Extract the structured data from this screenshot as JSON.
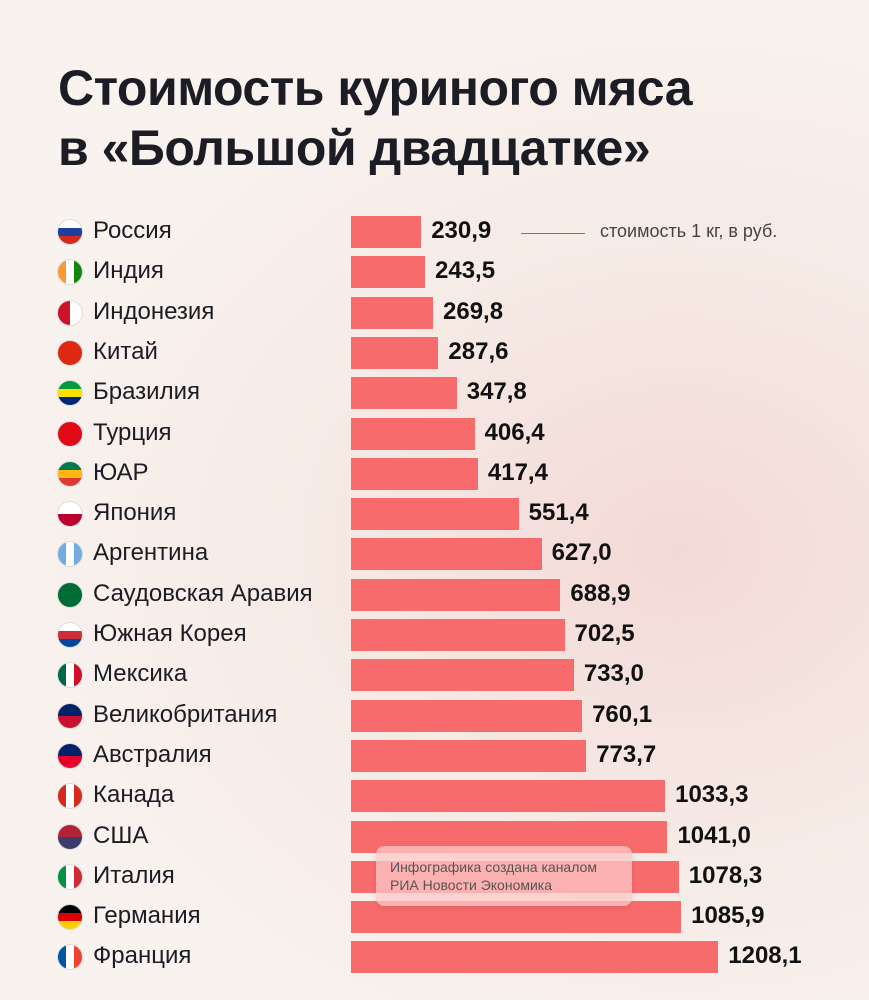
{
  "chart_data": {
    "type": "bar",
    "orientation": "horizontal",
    "title": "Стоимость куриного мяса в «Большой двадцатке»",
    "title_lines": [
      "Стоимость куриного мяса",
      "в «Большой двадцатке»"
    ],
    "annotation": "стоимость 1 кг, в руб.",
    "categories": [
      "Россия",
      "Индия",
      "Индонезия",
      "Китай",
      "Бразилия",
      "Турция",
      "ЮАР",
      "Япония",
      "Аргентина",
      "Саудовская Аравия",
      "Южная Корея",
      "Мексика",
      "Великобритания",
      "Австралия",
      "Канада",
      "США",
      "Италия",
      "Германия",
      "Франция"
    ],
    "values": [
      230.9,
      243.5,
      269.8,
      287.6,
      347.8,
      406.4,
      417.4,
      551.4,
      627.0,
      688.9,
      702.5,
      733.0,
      760.1,
      773.7,
      1033.3,
      1041.0,
      1078.3,
      1085.9,
      1208.1
    ],
    "value_labels": [
      "230,9",
      "243,5",
      "269,8",
      "287,6",
      "347,8",
      "406,4",
      "417,4",
      "551,4",
      "627,0",
      "688,9",
      "702,5",
      "733,0",
      "760,1",
      "773,7",
      "1033,3",
      "1041,0",
      "1078,3",
      "1085,9",
      "1208,1"
    ],
    "bar_color": "#f86b6d",
    "grid": false
  },
  "watermark": {
    "line1": "Инфографика создана каналом",
    "line2": "РИА Новости Экономика"
  },
  "flags": [
    [
      "#fff",
      "#1c3fa0",
      "#d52b1e"
    ],
    [
      "#ff9933",
      "#fff",
      "#138808"
    ],
    [
      "#ce1126",
      "#fff"
    ],
    [
      "#de2910"
    ],
    [
      "#009b3a",
      "#fedf00",
      "#002776"
    ],
    [
      "#e30a17"
    ],
    [
      "#007a4d",
      "#ffb612",
      "#de3831"
    ],
    [
      "#fff",
      "#bc002d"
    ],
    [
      "#74acdf",
      "#fff",
      "#74acdf"
    ],
    [
      "#006c35"
    ],
    [
      "#fff",
      "#cd2e3a",
      "#0047a0"
    ],
    [
      "#006847",
      "#fff",
      "#ce1126"
    ],
    [
      "#012169",
      "#c8102e"
    ],
    [
      "#012169",
      "#e4002b"
    ],
    [
      "#d52b1e",
      "#fff",
      "#d52b1e"
    ],
    [
      "#b22234",
      "#3c3b6e"
    ],
    [
      "#009246",
      "#fff",
      "#ce2b37"
    ],
    [
      "#000",
      "#dd0000",
      "#ffce00"
    ],
    [
      "#0055a4",
      "#fff",
      "#ef4135"
    ]
  ]
}
